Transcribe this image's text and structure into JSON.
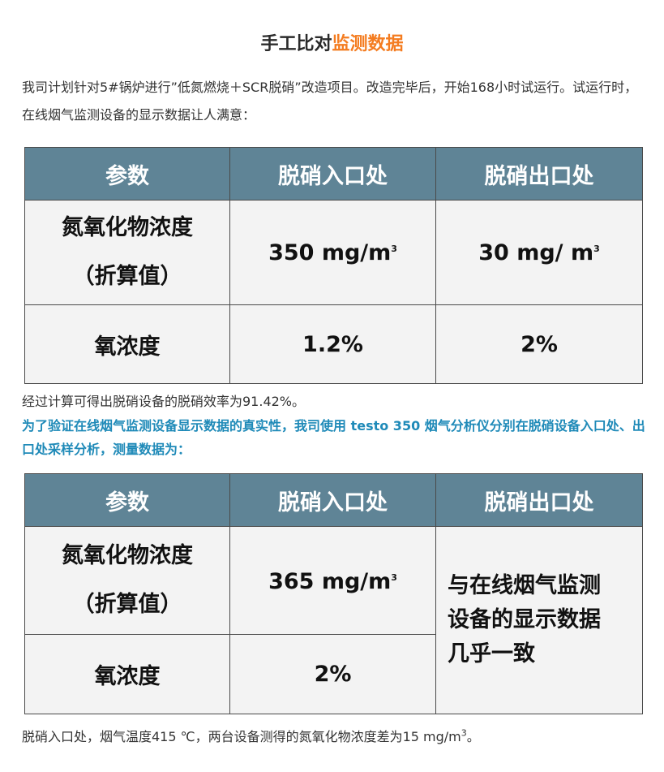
{
  "title": {
    "main": "手工比对",
    "accent": "监测数据"
  },
  "intro": "我司计划针对5#锅炉进行”低氮燃烧＋SCR脱硝”改造项目。改造完毕后，开始168小时试运行。试运行时，在线烟气监测设备的显示数据让人满意：",
  "table1": {
    "headers": [
      "参数",
      "脱硝入口处",
      "脱硝出口处"
    ],
    "row1": {
      "param_line1": "氮氧化物浓度",
      "param_line2": "（折算值）",
      "inlet": "350 mg/m",
      "inlet_sup": "3",
      "outlet": "30 mg/ m",
      "outlet_sup": "3"
    },
    "row2": {
      "param": "氧浓度",
      "inlet": "1.2%",
      "outlet": "2%"
    }
  },
  "efficiency": "经过计算可得出脱硝设备的脱硝效率为91.42%。",
  "verification": "为了验证在线烟气监测设备显示数据的真实性，我司使用 testo 350 烟气分析仪分别在脱硝设备入口处、出口处采样分析，测量数据为：",
  "table2": {
    "headers": [
      "参数",
      "脱硝入口处",
      "脱硝出口处"
    ],
    "row1": {
      "param_line1": "氮氧化物浓度",
      "param_line2": "（折算值）",
      "inlet": "365 mg/m",
      "inlet_sup": "3"
    },
    "row2": {
      "param": "氧浓度",
      "inlet": "2%"
    },
    "outlet_note_line1": "与在线烟气监测",
    "outlet_note_line2": "设备的显示数据",
    "outlet_note_line3": "几乎一致"
  },
  "conclusion": {
    "text": "脱硝入口处，烟气温度415 ℃，两台设备测得的氮氧化物浓度差为15 mg/m",
    "sup": "3",
    "end": "。"
  },
  "colors": {
    "header_bg": "#5f8496",
    "accent_orange": "#f47c20",
    "highlight_blue": "#1f8ab8",
    "cell_bg": "#f3f3f3"
  }
}
